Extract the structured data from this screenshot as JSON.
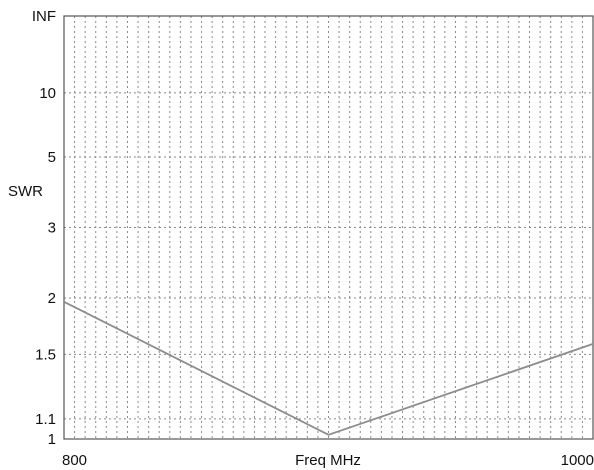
{
  "chart_data": {
    "type": "line",
    "xlabel": "Freq MHz",
    "ylabel": "SWR",
    "xlim": [
      800,
      1000
    ],
    "x_tick_labels": [
      {
        "value": 800,
        "label": "800"
      },
      {
        "value": 1000,
        "label": "1000"
      }
    ],
    "y_scale": "swr (reflection coefficient)",
    "y_ticks": [
      {
        "value": "INF",
        "label": "INF"
      },
      {
        "value": 10,
        "label": "10"
      },
      {
        "value": 5,
        "label": "5"
      },
      {
        "value": 3,
        "label": "3"
      },
      {
        "value": 2,
        "label": "2"
      },
      {
        "value": 1.5,
        "label": "1.5"
      },
      {
        "value": 1.1,
        "label": "1.1"
      },
      {
        "value": 1,
        "label": "1"
      }
    ],
    "vertical_gridlines": 50,
    "grid": true,
    "series": [
      {
        "x": [
          800,
          900,
          1000
        ],
        "y": [
          1.96,
          1.02,
          1.58
        ]
      }
    ],
    "colors": {
      "curve": "#8c8c8c",
      "grid": "#8a8a8a",
      "frame": "#555555"
    }
  }
}
